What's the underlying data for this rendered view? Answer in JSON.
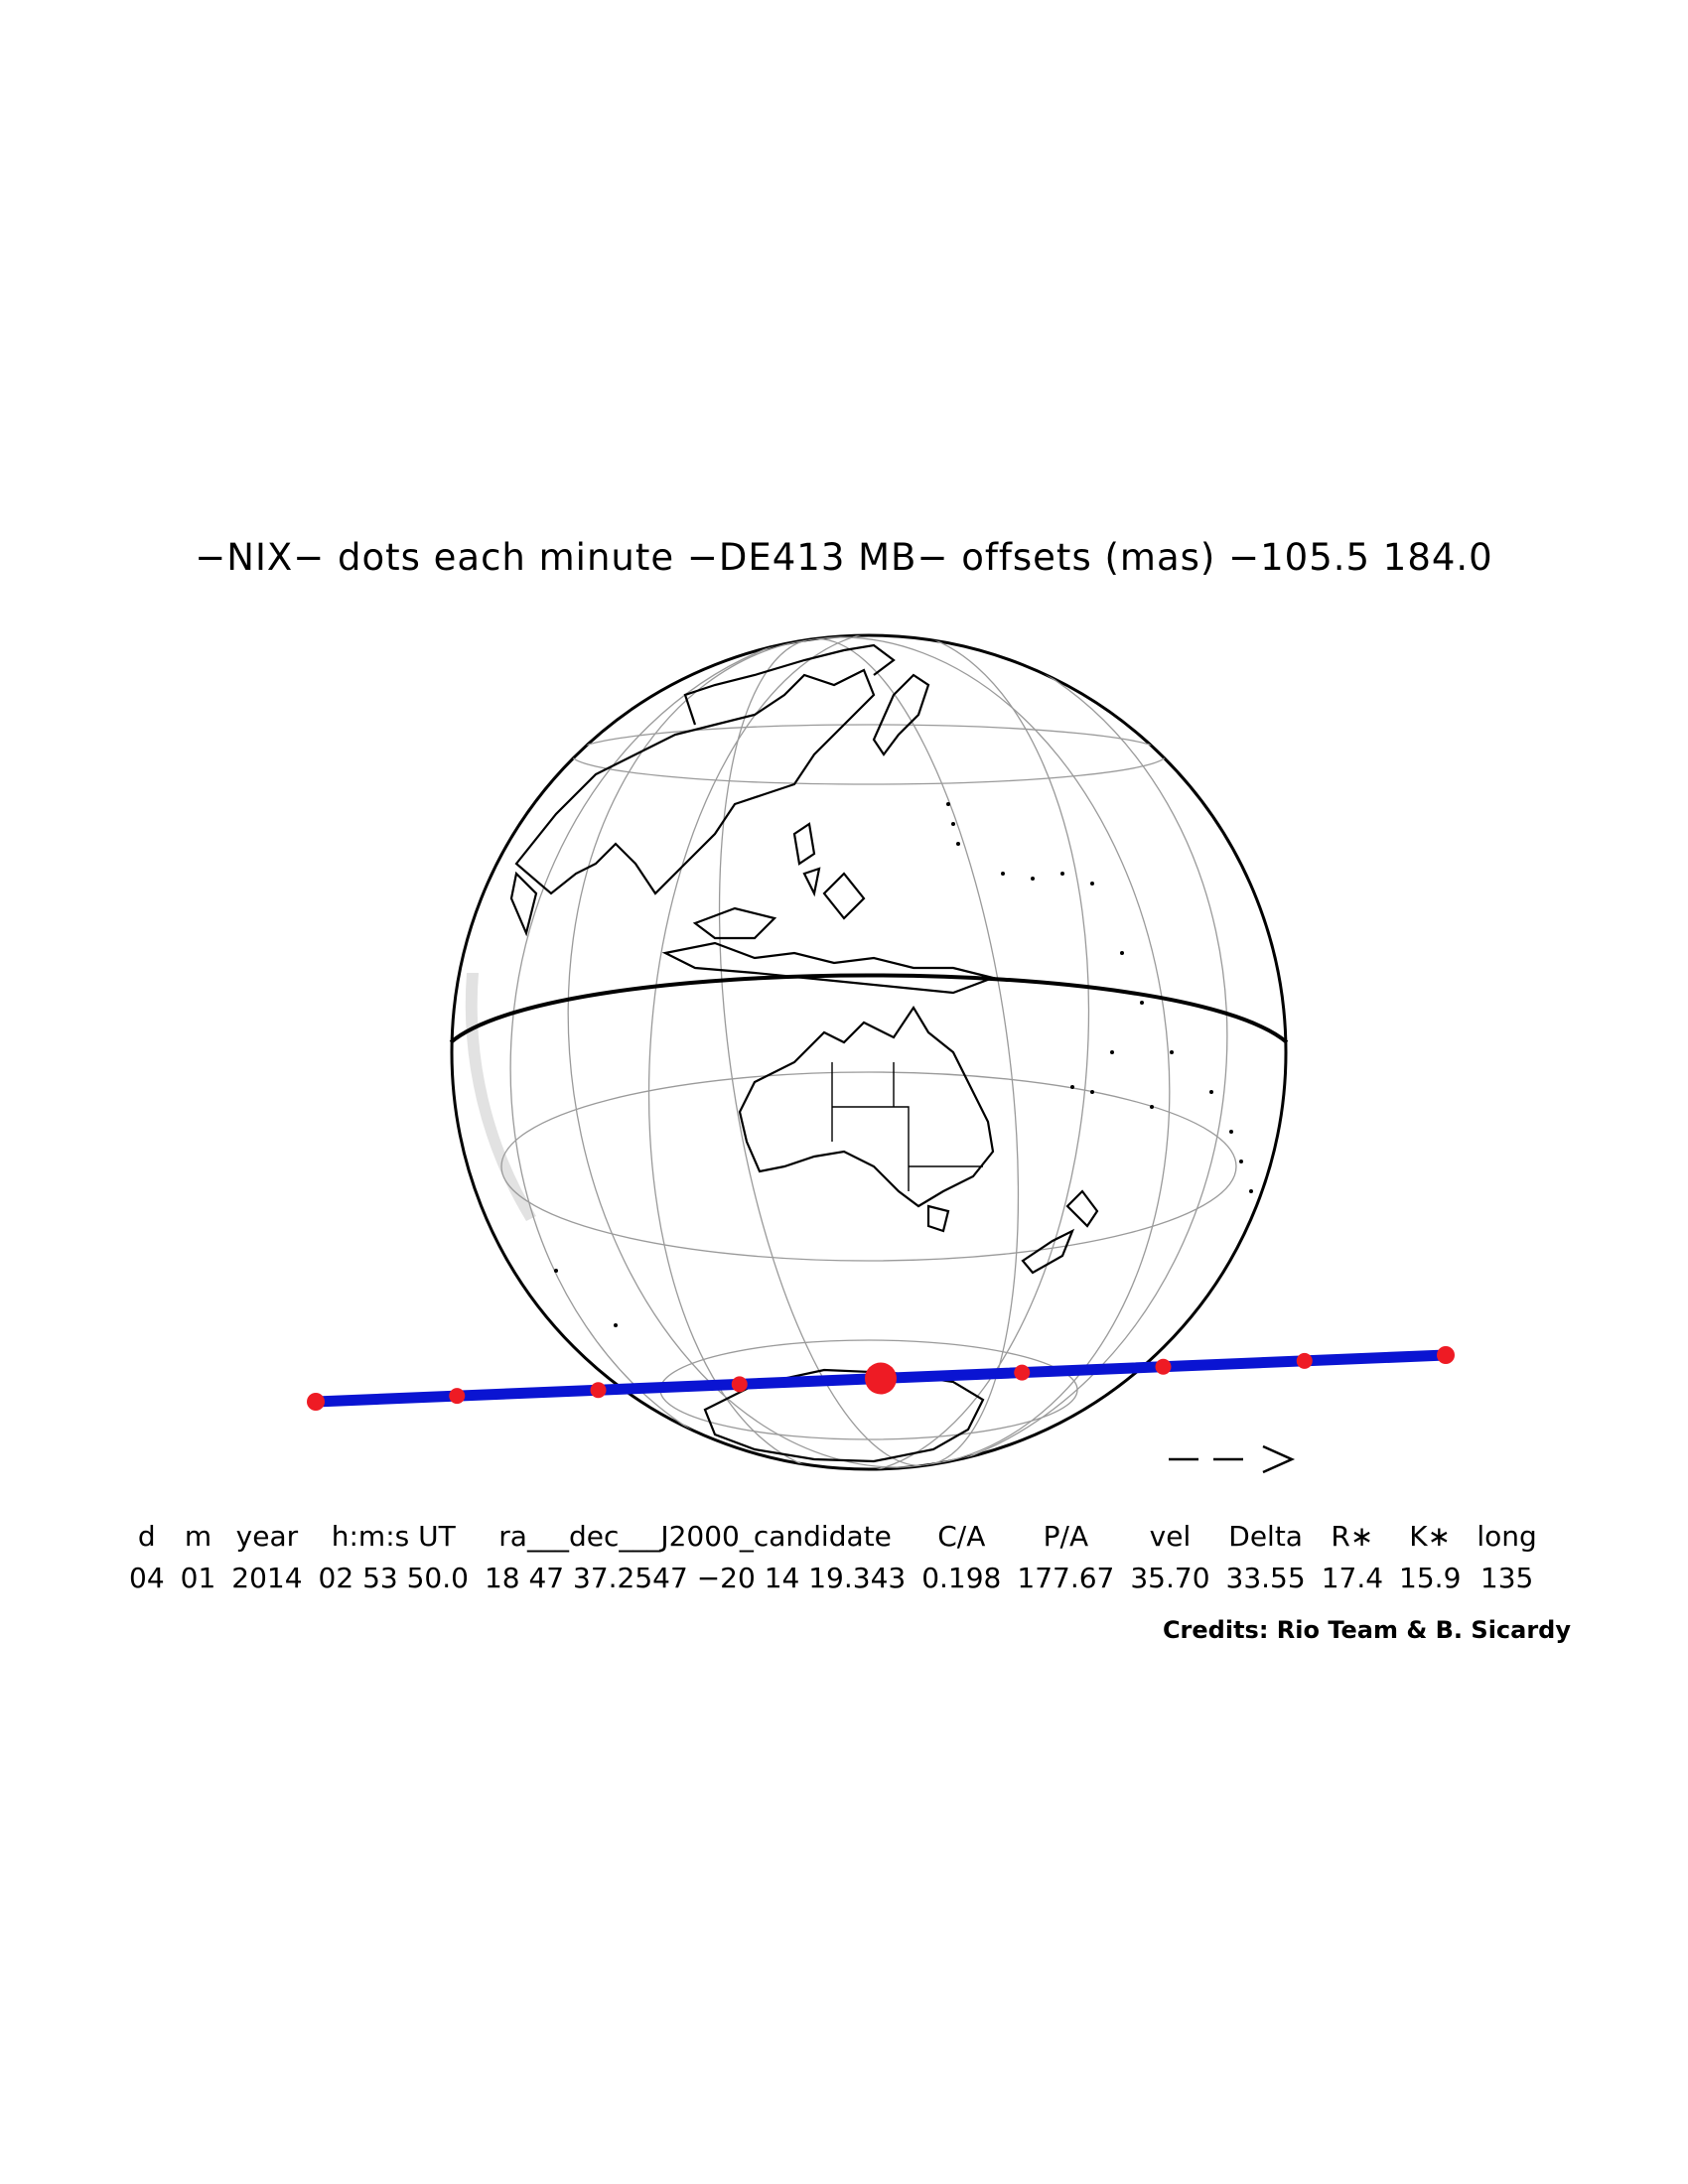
{
  "title": "−NIX− dots each minute −DE413 MB− offsets (mas) −105.5   184.0",
  "direction_arrow": "− −>",
  "table": {
    "headers": [
      "d",
      "m",
      "year",
      "h:m:s UT",
      "ra___dec___J2000_candidate",
      "C/A",
      "P/A",
      "vel",
      "Delta",
      "R∗",
      "K∗",
      "long"
    ],
    "values": [
      "04",
      "01",
      "2014",
      "02 53 50.0",
      "18 47 37.2547 −20 14 19.343",
      "0.198",
      "177.67",
      "35.70",
      "33.55",
      "17.4",
      "15.9",
      "135"
    ]
  },
  "credits": "Credits: Rio Team & B. Sicardy",
  "colors": {
    "track": "#0a14d2",
    "dots": "#ee1b24",
    "outline": "#000000",
    "grid": "#9a9a9a"
  },
  "track": {
    "dots_count": 9,
    "central_dot_index": 4
  }
}
